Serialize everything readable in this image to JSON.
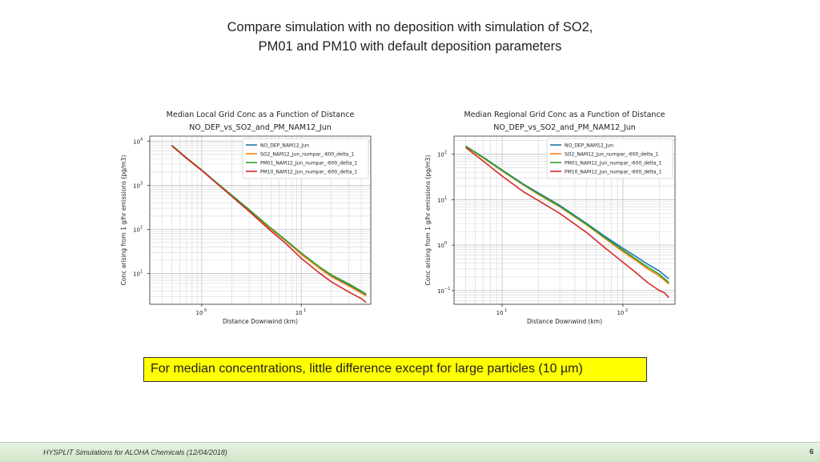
{
  "slide": {
    "title_line1": "Compare simulation with no deposition with simulation of SO2,",
    "title_line2": "PM01 and PM10 with default deposition parameters",
    "callout": "For median concentrations, little difference except for large particles (10 µm)",
    "footer": "HYSPLIT Simulations for ALOHA Chemicals (12/04/2018)",
    "page_number": "6"
  },
  "colors": {
    "NO_DEP": "#1f77b4",
    "SO2": "#ff7f0e",
    "PM01": "#2ca02c",
    "PM10": "#d62728"
  },
  "chart_data": [
    {
      "type": "line",
      "title": "Median Local Grid Conc as a Function of Distance",
      "subtitle": "NO_DEP_vs_SO2_and_PM_NAM12_Jun",
      "xlabel": "Distance Downwind (km)",
      "ylabel": "Conc arising from 1 g/hr emissions (pg/m3)",
      "xscale": "log",
      "yscale": "log",
      "xlim": [
        0.3,
        50
      ],
      "ylim": [
        2,
        13000
      ],
      "xticks": [
        {
          "v": 1,
          "e": "0"
        },
        {
          "v": 10,
          "e": "1"
        }
      ],
      "yticks": [
        {
          "v": 10,
          "e": "1"
        },
        {
          "v": 100,
          "e": "2"
        },
        {
          "v": 1000,
          "e": "3"
        },
        {
          "v": 10000,
          "e": "4"
        }
      ],
      "grid": true,
      "legend": "top-right",
      "series": [
        {
          "name": "NO_DEP_NAM12_Jun",
          "key": "NO_DEP",
          "x": [
            0.5,
            0.7,
            1,
            1.5,
            2,
            3,
            5,
            7,
            10,
            15,
            20,
            30,
            40,
            45
          ],
          "y": [
            8000,
            4200,
            2200,
            1000,
            580,
            270,
            100,
            55,
            28,
            14,
            9,
            5.5,
            3.8,
            3.3
          ]
        },
        {
          "name": "SO2_NAM12_Jun_numpar_-600_delta_1",
          "key": "SO2",
          "x": [
            0.5,
            0.7,
            1,
            1.5,
            2,
            3,
            5,
            7,
            10,
            15,
            20,
            30,
            40,
            45
          ],
          "y": [
            8000,
            4200,
            2200,
            1000,
            580,
            270,
            100,
            55,
            27,
            13.5,
            8.5,
            5.2,
            3.6,
            3.1
          ]
        },
        {
          "name": "PM01_NAM12_Jun_numpar_-600_delta_1",
          "key": "PM01",
          "x": [
            0.5,
            0.7,
            1,
            1.5,
            2,
            3,
            5,
            7,
            10,
            15,
            20,
            30,
            40,
            45
          ],
          "y": [
            8000,
            4200,
            2200,
            1020,
            600,
            280,
            105,
            57,
            29,
            14.5,
            9.3,
            5.8,
            4,
            3.4
          ]
        },
        {
          "name": "PM10_NAM12_Jun_numpar_-600_delta_1",
          "key": "PM10",
          "x": [
            0.5,
            0.7,
            1,
            1.5,
            2,
            3,
            5,
            7,
            10,
            15,
            20,
            30,
            40,
            45
          ],
          "y": [
            7800,
            4100,
            2150,
            980,
            560,
            255,
            90,
            48,
            22,
            10.5,
            6.5,
            3.8,
            2.7,
            2.2
          ]
        }
      ]
    },
    {
      "type": "line",
      "title": "Median Regional Grid Conc as a Function of Distance",
      "subtitle": "NO_DEP_vs_SO2_and_PM_NAM12_Jun",
      "xlabel": "Distance Downwind (km)",
      "ylabel": "Conc arising from 1 g/hr emissions (pg/m3)",
      "xscale": "log",
      "yscale": "log",
      "xlim": [
        4,
        270
      ],
      "ylim": [
        0.05,
        250
      ],
      "xticks": [
        {
          "v": 10,
          "e": "1"
        },
        {
          "v": 100,
          "e": "2"
        }
      ],
      "yticks": [
        {
          "v": 0.1,
          "e": "−1"
        },
        {
          "v": 1,
          "e": "0"
        },
        {
          "v": 10,
          "e": "1"
        },
        {
          "v": 100,
          "e": "2"
        }
      ],
      "grid": true,
      "legend": "top-right",
      "series": [
        {
          "name": "NO_DEP_NAM12_Jun",
          "key": "NO_DEP",
          "x": [
            5,
            7,
            10,
            15,
            20,
            30,
            50,
            70,
            100,
            130,
            160,
            200,
            240
          ],
          "y": [
            150,
            85,
            45,
            22,
            14,
            7.5,
            3,
            1.6,
            0.85,
            0.55,
            0.38,
            0.27,
            0.18
          ]
        },
        {
          "name": "SO2_NAM12_Jun_numpar_-600_delta_1",
          "key": "SO2",
          "x": [
            5,
            7,
            10,
            15,
            20,
            30,
            50,
            70,
            100,
            130,
            160,
            200,
            240
          ],
          "y": [
            148,
            82,
            43,
            21,
            13,
            7,
            2.8,
            1.45,
            0.72,
            0.45,
            0.3,
            0.21,
            0.14
          ]
        },
        {
          "name": "PM01_NAM12_Jun_numpar_-600_delta_1",
          "key": "PM01",
          "x": [
            5,
            7,
            10,
            15,
            20,
            30,
            50,
            70,
            100,
            130,
            160,
            200,
            240
          ],
          "y": [
            150,
            84,
            44,
            21.5,
            13.5,
            7.2,
            2.9,
            1.5,
            0.78,
            0.48,
            0.33,
            0.23,
            0.15
          ]
        },
        {
          "name": "PM10_NAM12_Jun_numpar_-600_delta_1",
          "key": "PM10",
          "x": [
            5,
            7,
            10,
            15,
            20,
            30,
            50,
            70,
            100,
            130,
            160,
            200,
            220,
            240
          ],
          "y": [
            140,
            70,
            33,
            15,
            9.5,
            5,
            1.9,
            0.9,
            0.42,
            0.24,
            0.15,
            0.1,
            0.09,
            0.07
          ]
        }
      ]
    }
  ]
}
